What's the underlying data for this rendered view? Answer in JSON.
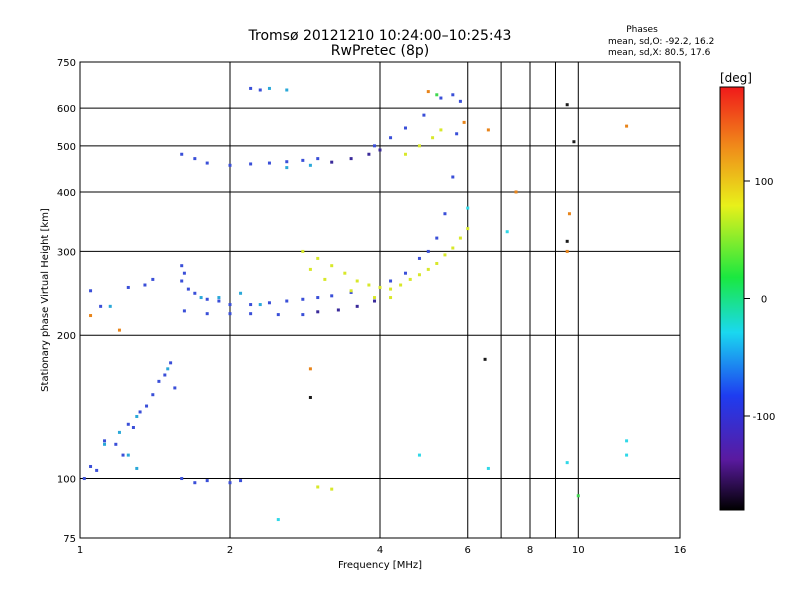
{
  "chart_data": {
    "type": "scatter",
    "title": "Tromsø 20121210 10:24:00–10:25:43",
    "subtitle": "RwPretec (8p)",
    "xlabel": "Frequency [MHz]",
    "ylabel": "Stationary phase Virtual Height [km]",
    "x_scale": "log",
    "y_scale": "log",
    "xlim": [
      1,
      16
    ],
    "ylim": [
      75,
      750
    ],
    "x_ticks": [
      1,
      2,
      4,
      6,
      8,
      10,
      16
    ],
    "x_tick_labels": [
      "1",
      "2",
      "4",
      "6",
      "8",
      "10",
      "16"
    ],
    "x_grid": [
      1,
      2,
      4,
      6,
      7,
      8,
      9,
      10,
      16
    ],
    "y_ticks": [
      75,
      100,
      200,
      300,
      400,
      500,
      600,
      750
    ],
    "y_tick_labels": [
      "75",
      "100",
      "200",
      "300",
      "400",
      "500",
      "600",
      "750"
    ],
    "grid": true,
    "phase_info": {
      "heading": "Phases",
      "o_line": "mean, sd,O: -92.2, 16.2",
      "x_line": "mean, sd,X:  80.5, 17.6"
    },
    "colorbar": {
      "label": "[deg]",
      "range": [
        -180,
        180
      ],
      "ticks": [
        100,
        0,
        -100
      ],
      "tick_labels": [
        "100",
        "0",
        "-100"
      ],
      "position": "right"
    },
    "series": [
      {
        "color": "#3a4fd8",
        "phase": -100,
        "points": [
          [
            1.02,
            100
          ],
          [
            1.05,
            106
          ],
          [
            1.08,
            104
          ],
          [
            1.12,
            120
          ],
          [
            1.18,
            118
          ],
          [
            1.22,
            112
          ],
          [
            1.25,
            130
          ],
          [
            1.28,
            128
          ],
          [
            1.32,
            138
          ],
          [
            1.36,
            142
          ],
          [
            1.4,
            150
          ],
          [
            1.44,
            160
          ],
          [
            1.48,
            165
          ],
          [
            1.52,
            175
          ],
          [
            1.55,
            155
          ],
          [
            1.6,
            280
          ],
          [
            1.6,
            260
          ],
          [
            1.62,
            270
          ],
          [
            1.65,
            250
          ],
          [
            1.7,
            245
          ],
          [
            1.8,
            238
          ],
          [
            1.9,
            236
          ],
          [
            2.0,
            232
          ],
          [
            2.2,
            232
          ],
          [
            2.4,
            234
          ],
          [
            2.6,
            236
          ],
          [
            2.8,
            238
          ],
          [
            3.0,
            240
          ],
          [
            3.2,
            242
          ],
          [
            3.5,
            246
          ],
          [
            4.2,
            260
          ],
          [
            4.5,
            270
          ],
          [
            4.8,
            290
          ],
          [
            5.0,
            300
          ],
          [
            5.2,
            320
          ],
          [
            5.4,
            360
          ],
          [
            5.6,
            430
          ],
          [
            5.7,
            530
          ],
          [
            5.8,
            620
          ],
          [
            5.6,
            640
          ],
          [
            5.3,
            630
          ],
          [
            4.9,
            580
          ],
          [
            4.5,
            545
          ],
          [
            4.2,
            520
          ],
          [
            3.9,
            500
          ],
          [
            1.6,
            480
          ],
          [
            1.7,
            470
          ],
          [
            1.8,
            460
          ],
          [
            2.0,
            455
          ],
          [
            2.2,
            458
          ],
          [
            2.4,
            460
          ],
          [
            2.6,
            463
          ],
          [
            2.8,
            466
          ],
          [
            3.0,
            470
          ],
          [
            1.6,
            100
          ],
          [
            1.7,
            98
          ],
          [
            1.8,
            99
          ],
          [
            2.0,
            98
          ],
          [
            2.1,
            99
          ],
          [
            2.2,
            660
          ],
          [
            2.3,
            655
          ],
          [
            1.05,
            248
          ],
          [
            1.1,
            230
          ],
          [
            1.25,
            252
          ],
          [
            1.35,
            255
          ],
          [
            1.4,
            262
          ],
          [
            1.62,
            225
          ],
          [
            1.8,
            222
          ],
          [
            2.0,
            222
          ],
          [
            2.2,
            222
          ],
          [
            2.5,
            221
          ],
          [
            2.8,
            221
          ]
        ]
      },
      {
        "color": "#3a2a9a",
        "phase": -130,
        "points": [
          [
            3.0,
            224
          ],
          [
            3.3,
            226
          ],
          [
            3.6,
            230
          ],
          [
            3.9,
            236
          ],
          [
            3.2,
            462
          ],
          [
            3.5,
            470
          ],
          [
            3.8,
            480
          ],
          [
            4.0,
            490
          ]
        ]
      },
      {
        "color": "#2aa8d8",
        "phase": -60,
        "points": [
          [
            1.12,
            118
          ],
          [
            1.2,
            125
          ],
          [
            1.3,
            135
          ],
          [
            1.5,
            170
          ],
          [
            1.9,
            240
          ],
          [
            2.1,
            245
          ],
          [
            2.4,
            660
          ],
          [
            2.6,
            655
          ],
          [
            1.3,
            105
          ],
          [
            1.15,
            230
          ],
          [
            1.75,
            240
          ],
          [
            2.3,
            232
          ],
          [
            2.6,
            450
          ],
          [
            2.9,
            455
          ],
          [
            1.25,
            112
          ]
        ]
      },
      {
        "color": "#d8e82a",
        "phase": 100,
        "points": [
          [
            2.8,
            300
          ],
          [
            3.0,
            290
          ],
          [
            3.2,
            280
          ],
          [
            3.4,
            270
          ],
          [
            3.6,
            260
          ],
          [
            3.8,
            255
          ],
          [
            4.0,
            252
          ],
          [
            4.2,
            250
          ],
          [
            4.4,
            255
          ],
          [
            4.6,
            262
          ],
          [
            4.8,
            268
          ],
          [
            5.0,
            275
          ],
          [
            5.2,
            283
          ],
          [
            5.4,
            295
          ],
          [
            5.6,
            305
          ],
          [
            5.8,
            320
          ],
          [
            6.0,
            335
          ],
          [
            4.5,
            480
          ],
          [
            4.8,
            500
          ],
          [
            5.1,
            520
          ],
          [
            5.3,
            540
          ],
          [
            2.9,
            275
          ],
          [
            3.1,
            262
          ],
          [
            3.5,
            248
          ],
          [
            3.9,
            240
          ],
          [
            4.2,
            240
          ],
          [
            3.0,
            96
          ],
          [
            3.2,
            95
          ]
        ]
      },
      {
        "color": "#e8841a",
        "phase": 140,
        "points": [
          [
            1.2,
            205
          ],
          [
            2.9,
            170
          ],
          [
            5.0,
            650
          ],
          [
            5.9,
            560
          ],
          [
            6.6,
            540
          ],
          [
            7.5,
            400
          ],
          [
            9.5,
            300
          ],
          [
            9.6,
            360
          ],
          [
            12.5,
            550
          ],
          [
            1.05,
            220
          ]
        ]
      },
      {
        "color": "#1a1a1a",
        "phase": -170,
        "points": [
          [
            2.9,
            148
          ],
          [
            6.5,
            178
          ],
          [
            9.5,
            610
          ],
          [
            9.5,
            315
          ],
          [
            9.8,
            510
          ]
        ]
      },
      {
        "color": "#30d8e8",
        "phase": -40,
        "points": [
          [
            7.2,
            330
          ],
          [
            6.6,
            105
          ],
          [
            9.5,
            108
          ],
          [
            12.5,
            120
          ],
          [
            12.5,
            112
          ],
          [
            2.5,
            82
          ],
          [
            4.8,
            112
          ],
          [
            6.0,
            370
          ]
        ]
      },
      {
        "color": "#40d850",
        "phase": 20,
        "points": [
          [
            10.0,
            92
          ],
          [
            5.2,
            640
          ]
        ]
      }
    ]
  }
}
